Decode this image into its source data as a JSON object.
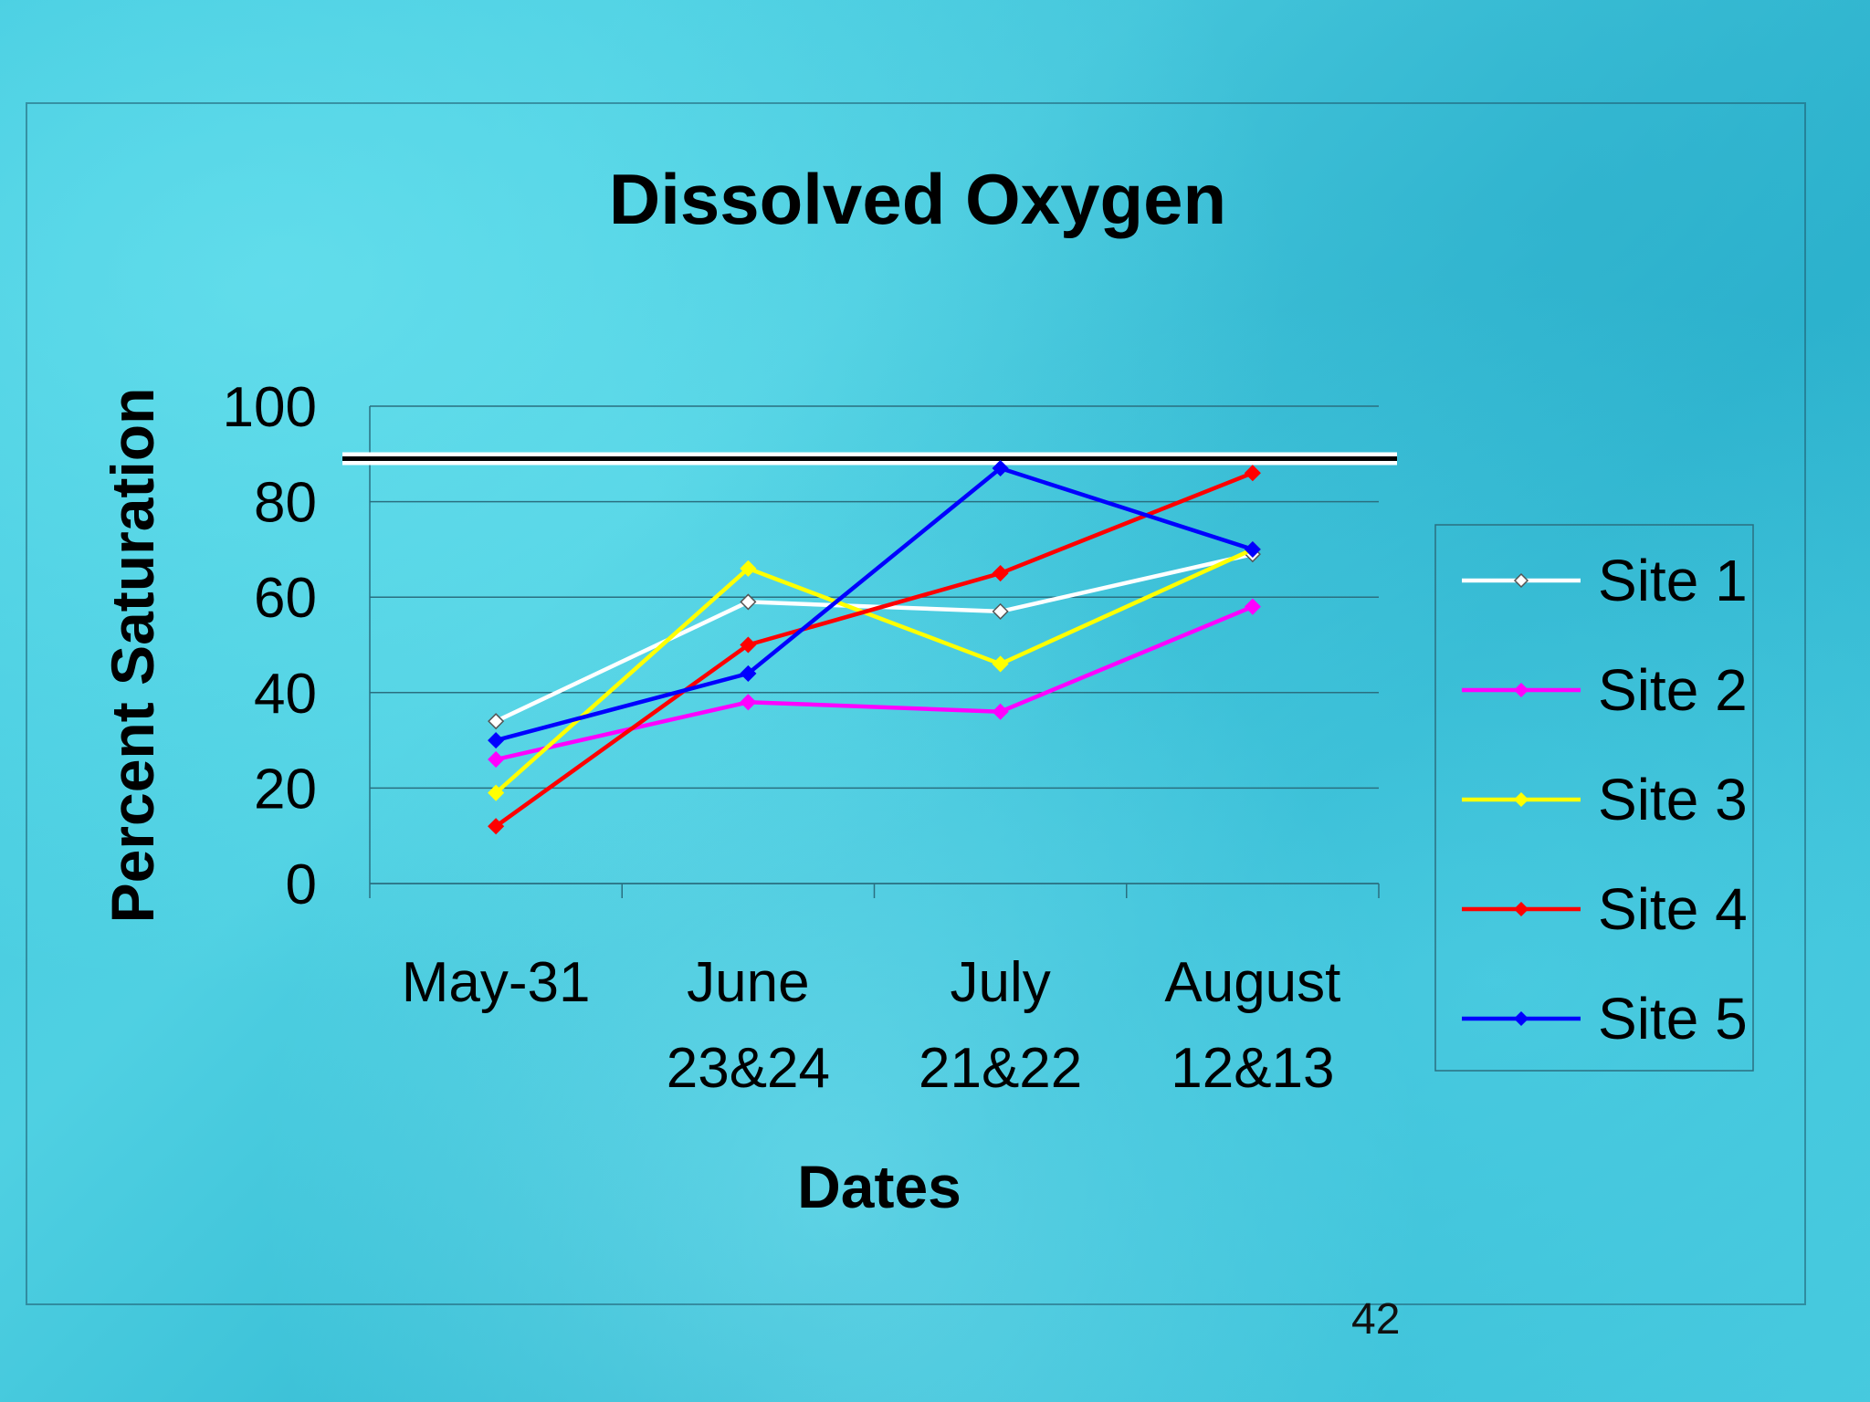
{
  "page_number": "42",
  "chart_data": {
    "type": "line",
    "title": "Dissolved Oxygen",
    "xlabel": "Dates",
    "ylabel": "Percent Saturation",
    "ylim": [
      0,
      100
    ],
    "yticks": [
      "0",
      "20",
      "40",
      "60",
      "80",
      "100"
    ],
    "categories": [
      [
        "May-31"
      ],
      [
        "June",
        "23&24"
      ],
      [
        "July",
        "21&22"
      ],
      [
        "August",
        "12&13"
      ]
    ],
    "reference_line": {
      "value": 89,
      "color": "#000000"
    },
    "grid": true,
    "legend_position": "right",
    "series": [
      {
        "name": "Site 1",
        "color": "#ffffff",
        "values": [
          34,
          59,
          57,
          69
        ]
      },
      {
        "name": "Site 2",
        "color": "#ff00ff",
        "values": [
          26,
          38,
          36,
          58
        ]
      },
      {
        "name": "Site 3",
        "color": "#ffff00",
        "values": [
          19,
          66,
          46,
          70
        ]
      },
      {
        "name": "Site 4",
        "color": "#ff0000",
        "values": [
          12,
          50,
          65,
          86
        ]
      },
      {
        "name": "Site 5",
        "color": "#0000ff",
        "values": [
          30,
          44,
          87,
          70
        ]
      }
    ]
  }
}
